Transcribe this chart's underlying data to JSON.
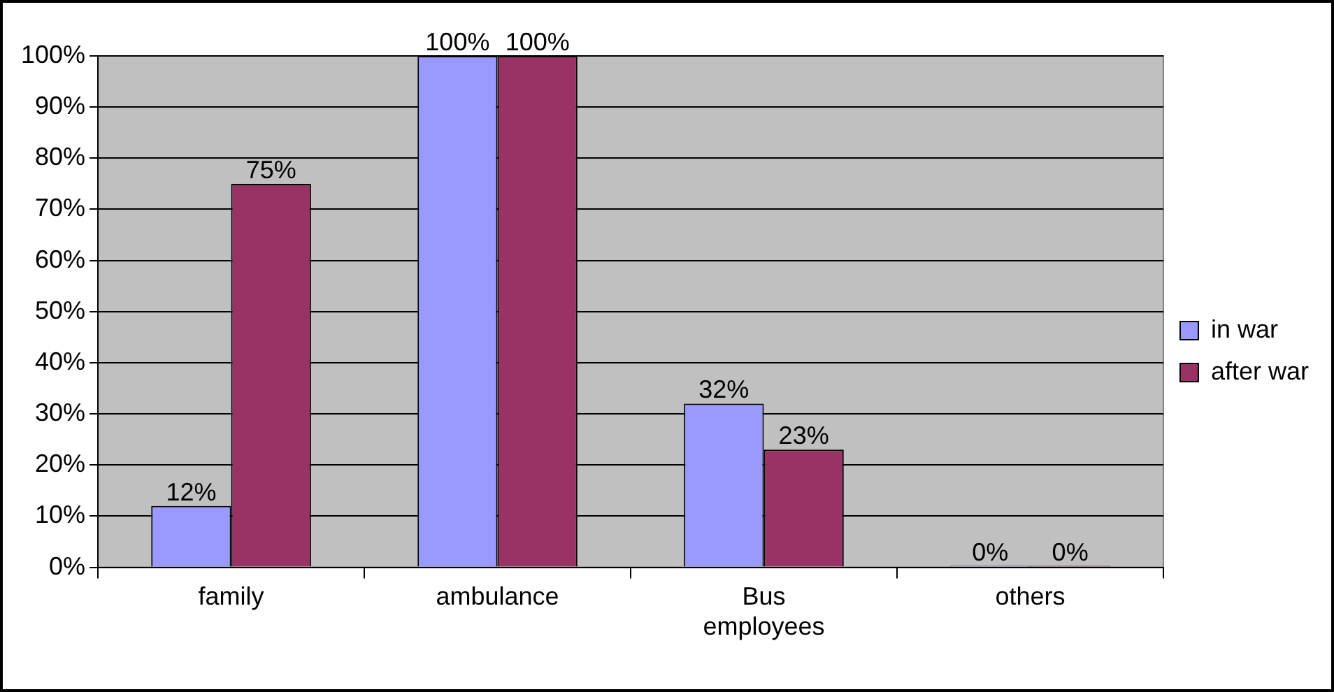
{
  "chart_data": {
    "type": "bar",
    "categories": [
      "family",
      "ambulance",
      "Bus employees",
      "others"
    ],
    "series": [
      {
        "name": "in war",
        "color": "#9999ff",
        "values": [
          12,
          100,
          32,
          0
        ],
        "value_labels": [
          "12%",
          "100%",
          "32%",
          "0%"
        ]
      },
      {
        "name": "after war",
        "color": "#993366",
        "values": [
          75,
          100,
          23,
          0
        ],
        "value_labels": [
          "75%",
          "100%",
          "23%",
          "0%"
        ]
      }
    ],
    "ylim": [
      0,
      100
    ],
    "yticks": [
      {
        "value": 0,
        "label": "0%"
      },
      {
        "value": 10,
        "label": "10%"
      },
      {
        "value": 20,
        "label": "20%"
      },
      {
        "value": 30,
        "label": "30%"
      },
      {
        "value": 40,
        "label": "40%"
      },
      {
        "value": 50,
        "label": "50%"
      },
      {
        "value": 60,
        "label": "60%"
      },
      {
        "value": 70,
        "label": "70%"
      },
      {
        "value": 80,
        "label": "80%"
      },
      {
        "value": 90,
        "label": "90%"
      },
      {
        "value": 100,
        "label": "100%"
      }
    ],
    "grid": "y",
    "legend": "right"
  }
}
